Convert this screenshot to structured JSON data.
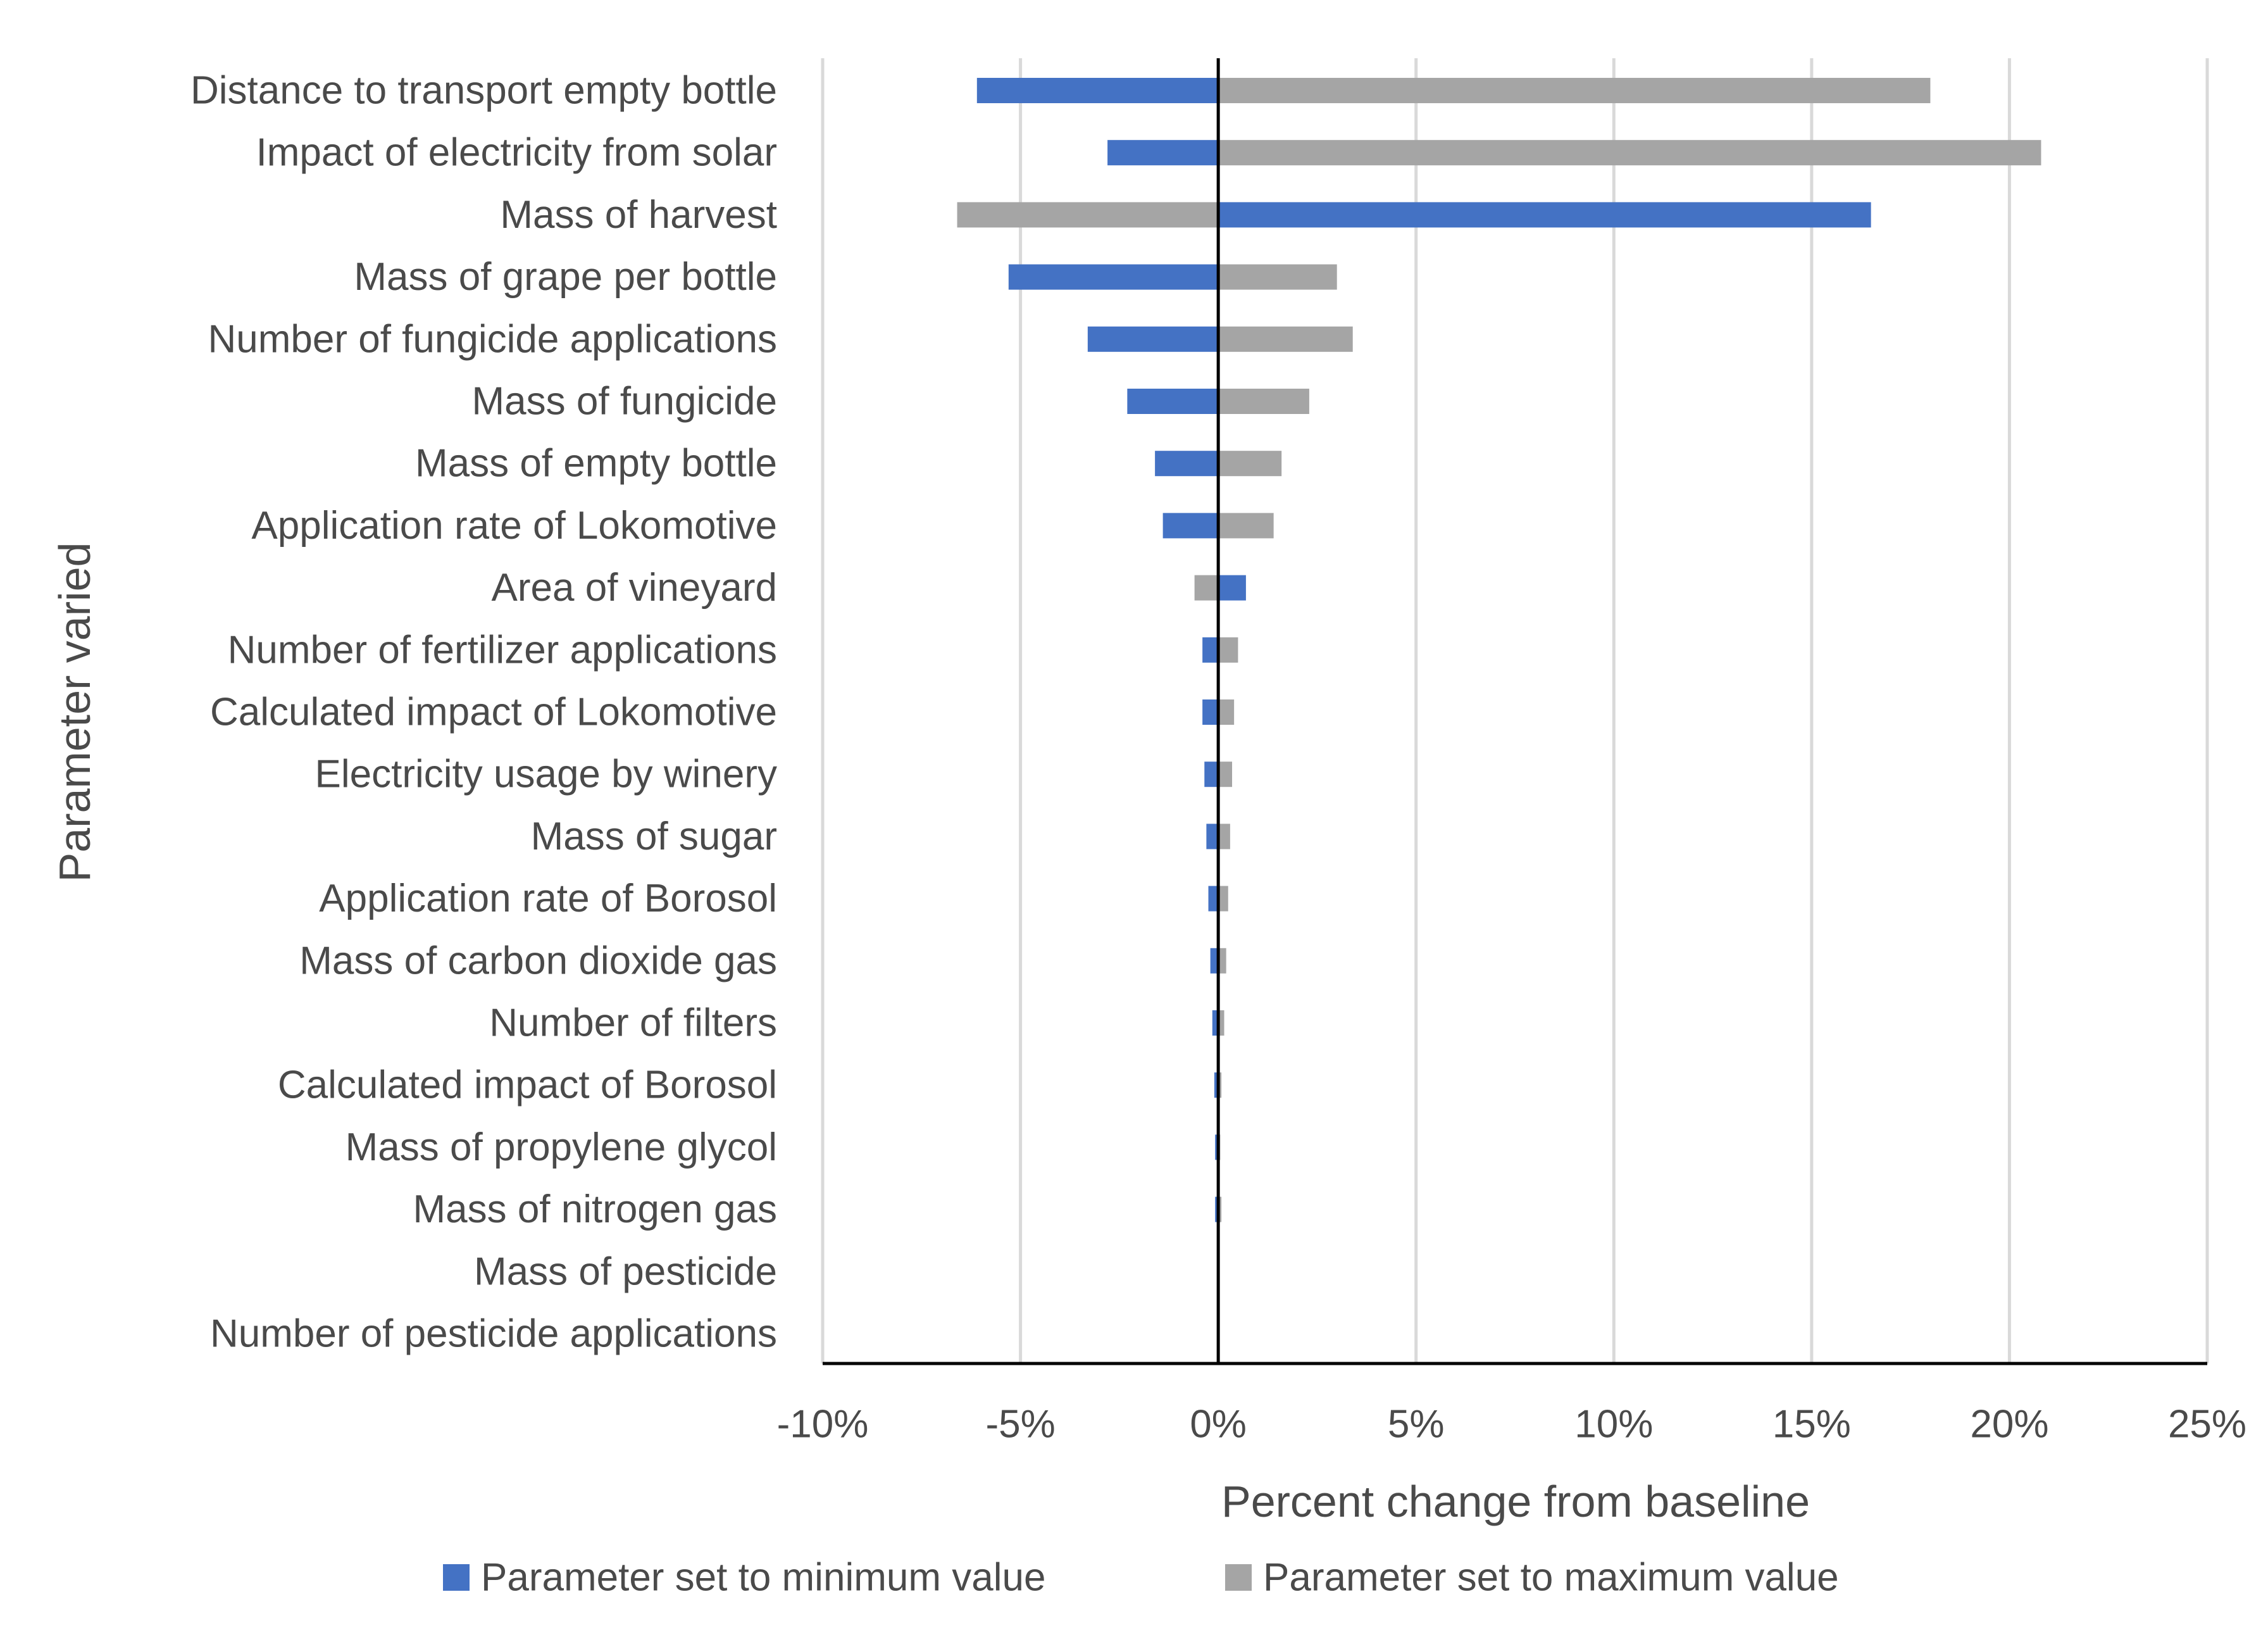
{
  "chart_data": {
    "type": "bar",
    "orientation": "horizontal",
    "title": "",
    "xlabel": "Percent change from baseline",
    "ylabel": "Parameter varied",
    "xlim": [
      -10,
      25
    ],
    "x_ticks": [
      -10,
      -5,
      0,
      5,
      10,
      15,
      20,
      25
    ],
    "x_tick_labels": [
      "-10%",
      "-5%",
      "0%",
      "5%",
      "10%",
      "15%",
      "20%",
      "25%"
    ],
    "grid": "vertical",
    "legend_position": "bottom",
    "categories": [
      "Distance to transport empty bottle",
      "Impact of electricity from solar",
      "Mass of harvest",
      "Mass of grape per bottle",
      "Number of fungicide applications",
      "Mass of fungicide",
      "Mass of empty bottle",
      "Application rate of Lokomotive",
      "Area of vineyard",
      "Number of fertilizer applications",
      "Calculated impact of Lokomotive",
      "Electricity usage by winery",
      "Mass of sugar",
      "Application rate of Borosol",
      "Mass of carbon dioxide gas",
      "Number of filters",
      "Calculated impact of Borosol",
      "Mass of propylene glycol",
      "Mass of nitrogen gas",
      "Mass of pesticide",
      "Number of pesticide applications"
    ],
    "series": [
      {
        "name": "Parameter set to minimum value",
        "color": "#4472c4",
        "values": [
          -6.1,
          -2.8,
          16.5,
          -5.3,
          -3.3,
          -2.3,
          -1.6,
          -1.4,
          0.7,
          -0.4,
          -0.4,
          -0.35,
          -0.3,
          -0.25,
          -0.2,
          -0.15,
          -0.1,
          -0.08,
          -0.08,
          0,
          0
        ]
      },
      {
        "name": "Parameter set to maximum value",
        "color": "#a5a5a5",
        "values": [
          18.0,
          20.8,
          -6.6,
          3.0,
          3.4,
          2.3,
          1.6,
          1.4,
          -0.6,
          0.5,
          0.4,
          0.35,
          0.3,
          0.25,
          0.2,
          0.15,
          0.08,
          0.05,
          0.08,
          0,
          0
        ]
      }
    ]
  }
}
